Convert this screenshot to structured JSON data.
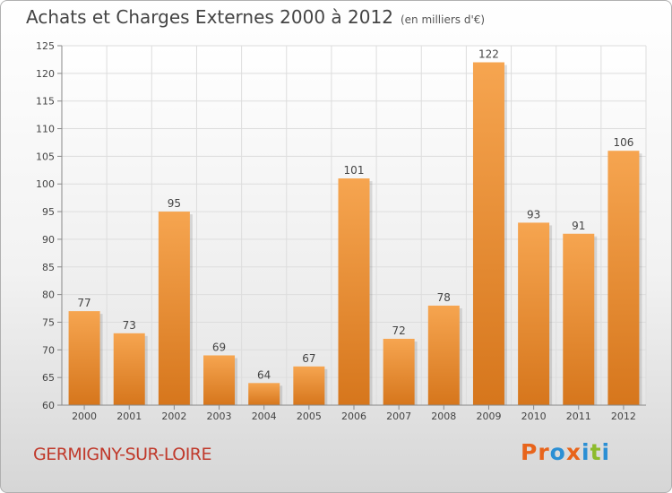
{
  "title": "Achats et Charges Externes 2000 à 2012",
  "unit": "(en milliers d'€)",
  "commune": "GERMIGNY-SUR-LOIRE",
  "brand": "Proxiti",
  "colors": {
    "bar_top": "#f6a550",
    "bar_bottom": "#d6761c",
    "commune": "#c0392b",
    "brand": [
      "#e8641b",
      "#e8641b",
      "#2b8fd4",
      "#e8641b",
      "#2b8fd4",
      "#8dbb2c",
      "#2b8fd4"
    ]
  },
  "chart_data": {
    "type": "bar",
    "title": "Achats et Charges Externes 2000 à 2012",
    "ylabel": "",
    "xlabel": "",
    "categories": [
      "2000",
      "2001",
      "2002",
      "2003",
      "2004",
      "2005",
      "2006",
      "2007",
      "2008",
      "2009",
      "2010",
      "2011",
      "2012"
    ],
    "values": [
      77,
      73,
      95,
      69,
      64,
      67,
      101,
      72,
      78,
      122,
      93,
      91,
      106
    ],
    "ylim": [
      60,
      125
    ],
    "yticks": [
      60,
      65,
      70,
      75,
      80,
      85,
      90,
      95,
      100,
      105,
      110,
      115,
      120,
      125
    ],
    "grid": true,
    "data_labels": true
  }
}
